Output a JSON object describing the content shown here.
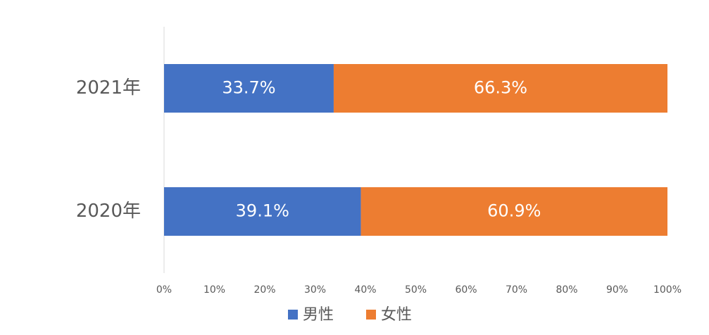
{
  "chart_data": {
    "type": "stacked_bar_horizontal",
    "categories": [
      "2021年",
      "2020年"
    ],
    "series": [
      {
        "name": "男性",
        "color": "#4472c4",
        "values": [
          33.7,
          39.1
        ],
        "value_labels": [
          "33.7%",
          "39.1%"
        ]
      },
      {
        "name": "女性",
        "color": "#ed7d31",
        "values": [
          66.3,
          60.9
        ],
        "value_labels": [
          "66.3%",
          "60.9%"
        ]
      }
    ],
    "xlim": [
      0,
      100
    ],
    "xticks": [
      {
        "value": 0,
        "label": "0%"
      },
      {
        "value": 10,
        "label": "10%"
      },
      {
        "value": 20,
        "label": "20%"
      },
      {
        "value": 30,
        "label": "30%"
      },
      {
        "value": 40,
        "label": "40%"
      },
      {
        "value": 50,
        "label": "50%"
      },
      {
        "value": 60,
        "label": "60%"
      },
      {
        "value": 70,
        "label": "70%"
      },
      {
        "value": 80,
        "label": "80%"
      },
      {
        "value": 90,
        "label": "90%"
      },
      {
        "value": 100,
        "label": "100%"
      }
    ],
    "grid": false,
    "legend": "bottom"
  }
}
